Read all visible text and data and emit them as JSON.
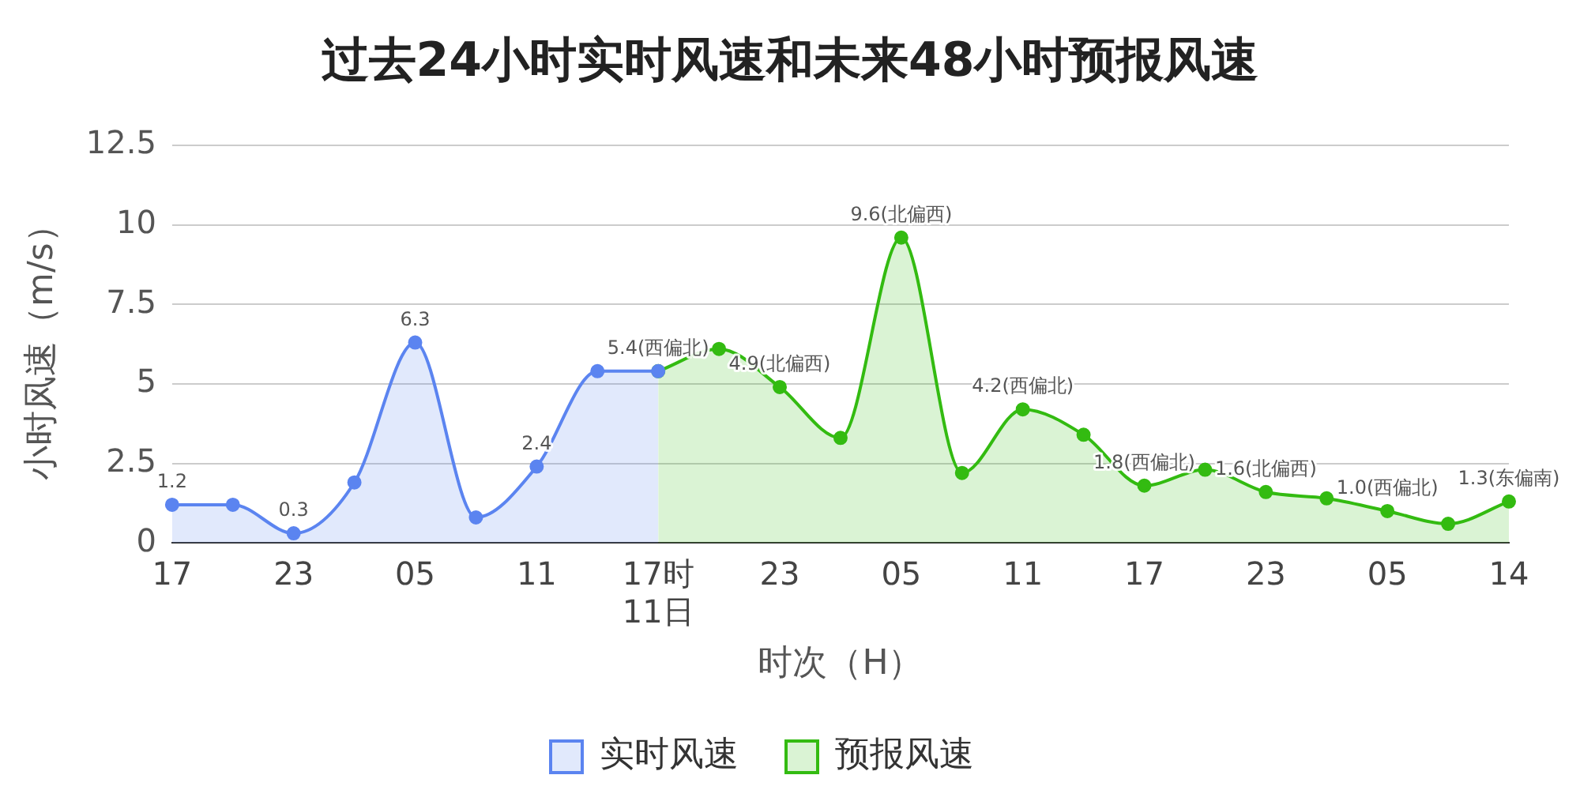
{
  "chart_data": {
    "type": "area",
    "title": "过去24小时实时风速和未来48小时预报风速",
    "xlabel": "时次（H）",
    "ylabel": "小时风速（m/s）",
    "categories": [
      "17",
      null,
      "23",
      null,
      "05",
      null,
      "11",
      null,
      "17时\n11日",
      null,
      "23",
      null,
      "05",
      null,
      "11",
      null,
      "17",
      null,
      "23",
      null,
      "05",
      null,
      "14"
    ],
    "ylim": [
      0,
      12.5
    ],
    "yticks": [
      0,
      2.5,
      5,
      7.5,
      10,
      12.5
    ],
    "grid": "y",
    "legend": "bottom",
    "marker": "circle",
    "series": [
      {
        "name": "实时风速",
        "color": "#5b84f0",
        "values": [
          1.2,
          1.2,
          0.3,
          1.9,
          6.3,
          0.8,
          2.4,
          5.4,
          5.4,
          null,
          null,
          null,
          null,
          null,
          null,
          null,
          null,
          null,
          null,
          null,
          null,
          null,
          null
        ],
        "value_labels": [
          "1.2",
          null,
          "0.3",
          null,
          "6.3",
          null,
          "2.4",
          null,
          null,
          null,
          null,
          null,
          null,
          null,
          null,
          null,
          null,
          null,
          null,
          null,
          null,
          null,
          null
        ]
      },
      {
        "name": "预报风速",
        "color": "#33bb11",
        "values": [
          null,
          null,
          null,
          null,
          null,
          null,
          null,
          null,
          5.4,
          6.1,
          4.9,
          3.3,
          9.6,
          2.2,
          4.2,
          3.4,
          1.8,
          2.3,
          1.6,
          1.4,
          1.0,
          0.6,
          1.3
        ],
        "value_labels": [
          null,
          null,
          null,
          null,
          null,
          null,
          null,
          null,
          "5.4(西偏北)",
          null,
          "4.9(北偏西)",
          null,
          "9.6(北偏西)",
          null,
          "4.2(西偏北)",
          null,
          "1.8(西偏北)",
          null,
          "1.6(北偏西)",
          null,
          "1.0(西偏北)",
          null,
          "1.3(东偏南)"
        ]
      }
    ]
  }
}
